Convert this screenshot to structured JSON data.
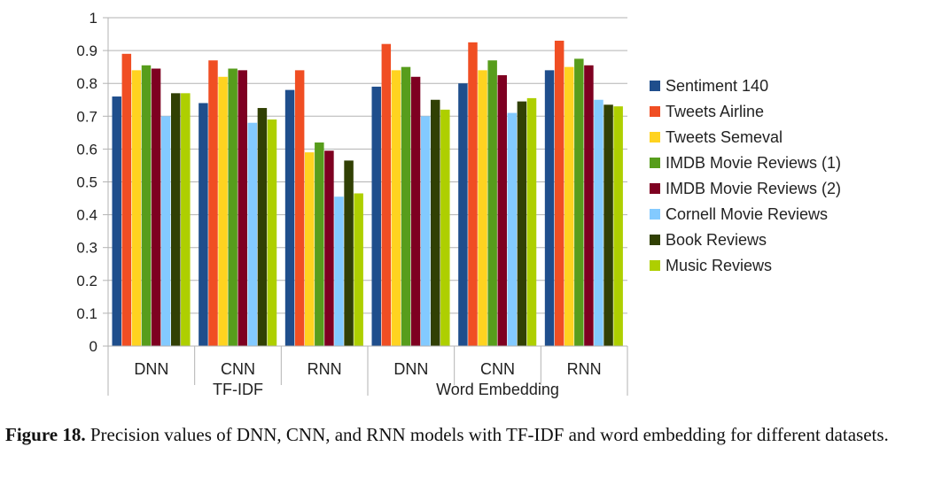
{
  "chart_data": {
    "type": "bar",
    "title": "",
    "xlabel": "",
    "ylabel": "",
    "ylim": [
      0,
      1
    ],
    "yticks": [
      "0",
      "0.1",
      "0.2",
      "0.3",
      "0.4",
      "0.5",
      "0.6",
      "0.7",
      "0.8",
      "0.9",
      "1"
    ],
    "categories": [
      "DNN",
      "CNN",
      "RNN",
      "DNN",
      "CNN",
      "RNN"
    ],
    "groups": [
      {
        "label": "TF-IDF",
        "span": [
          0,
          2
        ]
      },
      {
        "label": "Word Embedding",
        "span": [
          3,
          5
        ]
      }
    ],
    "legend_position": "right",
    "series": [
      {
        "name": "Sentiment 140",
        "color": "#1f4e8c",
        "values": [
          0.76,
          0.74,
          0.78,
          0.79,
          0.8,
          0.84
        ]
      },
      {
        "name": "Tweets Airline",
        "color": "#f04e23",
        "values": [
          0.89,
          0.87,
          0.84,
          0.92,
          0.925,
          0.93
        ]
      },
      {
        "name": "Tweets Semeval",
        "color": "#ffd320",
        "values": [
          0.84,
          0.82,
          0.59,
          0.84,
          0.84,
          0.85
        ]
      },
      {
        "name": "IMDB Movie Reviews (1)",
        "color": "#579d1c",
        "values": [
          0.855,
          0.845,
          0.62,
          0.85,
          0.87,
          0.875
        ]
      },
      {
        "name": "IMDB Movie Reviews (2)",
        "color": "#7e0021",
        "values": [
          0.845,
          0.84,
          0.595,
          0.82,
          0.825,
          0.855
        ]
      },
      {
        "name": "Cornell Movie Reviews",
        "color": "#83caff",
        "values": [
          0.7,
          0.68,
          0.455,
          0.7,
          0.71,
          0.75
        ]
      },
      {
        "name": "Book Reviews",
        "color": "#314004",
        "values": [
          0.77,
          0.725,
          0.565,
          0.75,
          0.745,
          0.735
        ]
      },
      {
        "name": "Music Reviews",
        "color": "#aecf00",
        "values": [
          0.77,
          0.69,
          0.465,
          0.72,
          0.755,
          0.73
        ]
      }
    ]
  },
  "caption": {
    "label": "Figure 18.",
    "text": "Precision values of DNN, CNN, and RNN models with TF-IDF and word embedding for different datasets."
  }
}
